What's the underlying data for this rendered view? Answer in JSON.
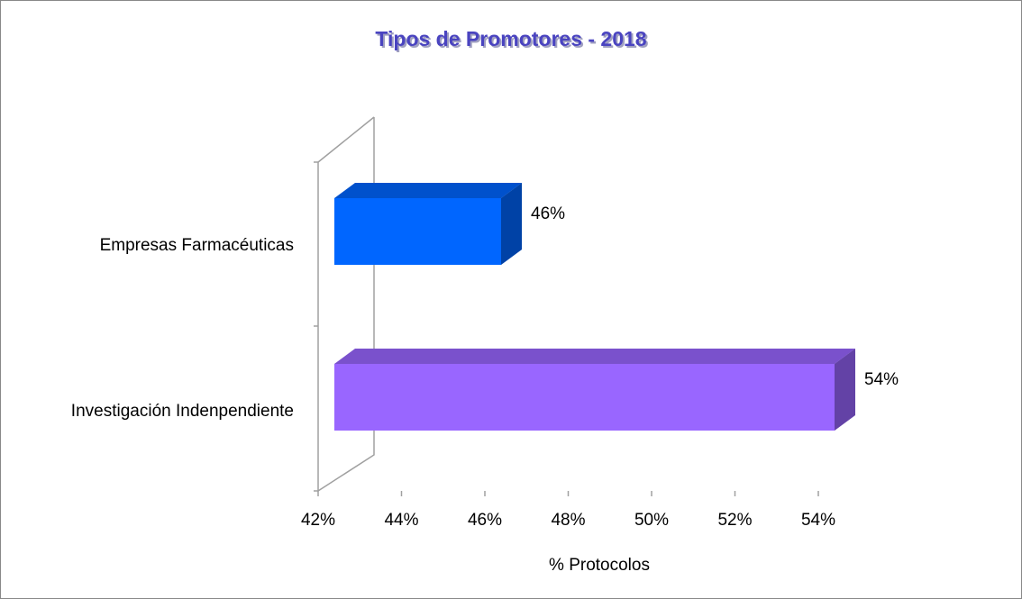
{
  "chart_data": {
    "type": "bar3d_horizontal",
    "title": "Tipos de Promotores  - 2018",
    "categories": [
      "Empresas Farmacéuticas",
      "Investigación Indenpendiente"
    ],
    "values": [
      46,
      54
    ],
    "value_labels": [
      "46%",
      "54%"
    ],
    "colors": [
      "#0066ff",
      "#9966ff"
    ],
    "xlabel": "% Protocolos",
    "xlim": [
      42,
      54
    ],
    "xticks": [
      {
        "value": 42,
        "label": "42%"
      },
      {
        "value": 44,
        "label": "44%"
      },
      {
        "value": 46,
        "label": "46%"
      },
      {
        "value": 48,
        "label": "48%"
      },
      {
        "value": 50,
        "label": "50%"
      },
      {
        "value": 52,
        "label": "52%"
      },
      {
        "value": 54,
        "label": "54%"
      }
    ]
  }
}
